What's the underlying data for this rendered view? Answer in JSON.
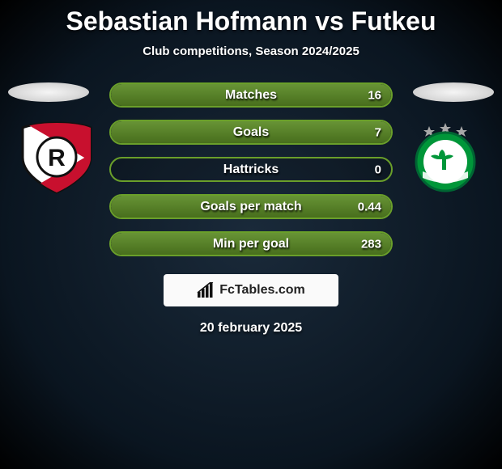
{
  "title": "Sebastian Hofmann vs Futkeu",
  "subtitle": "Club competitions, Season 2024/2025",
  "date": "20 february 2025",
  "footer_brand": "FcTables.com",
  "row_border_color": "#6a9f2a",
  "row_fill_color": "#5a8a24",
  "stats": [
    {
      "label": "Matches",
      "value": "16",
      "fill_pct": 100
    },
    {
      "label": "Goals",
      "value": "7",
      "fill_pct": 100
    },
    {
      "label": "Hattricks",
      "value": "0",
      "fill_pct": 0
    },
    {
      "label": "Goals per match",
      "value": "0.44",
      "fill_pct": 100
    },
    {
      "label": "Min per goal",
      "value": "283",
      "fill_pct": 100
    }
  ],
  "left_badge": {
    "name": "jahn-regensburg-badge",
    "primary": "#c8102e",
    "secondary": "#ffffff",
    "letter": "R"
  },
  "right_badge": {
    "name": "greuther-fuerth-badge",
    "primary": "#009639",
    "secondary": "#ffffff",
    "accent": "#a8a8a8"
  }
}
